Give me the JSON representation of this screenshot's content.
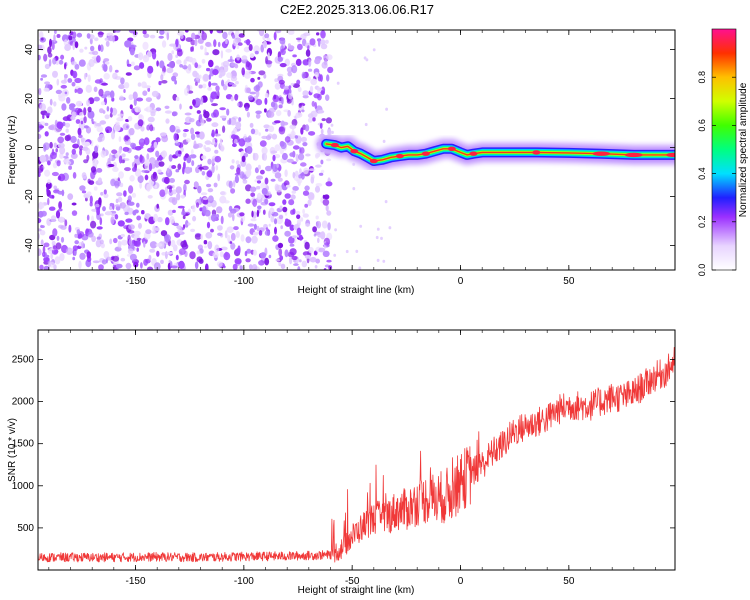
{
  "title": "C2E2.2025.313.06.06.R17",
  "chart_data": [
    {
      "type": "heatmap",
      "title": "C2E2.2025.313.06.06.R17",
      "xlabel": "Height of straight line (km)",
      "ylabel": "Frequency (Hz)",
      "xlim": [
        -195,
        99
      ],
      "ylim": [
        -50,
        48
      ],
      "xticks": [
        -150,
        -100,
        -50,
        0,
        50
      ],
      "xtick_labels": [
        "-150",
        "-100",
        "",
        "0",
        "50"
      ],
      "yticks": [
        -40,
        -20,
        0,
        20,
        40
      ],
      "ytick_labels": [
        "-40",
        "-20",
        "0",
        "20",
        "40"
      ],
      "noise_region_x": [
        -195,
        -60
      ],
      "signal_track": [
        {
          "x": -62,
          "y": 1.5
        },
        {
          "x": -58,
          "y": 1.0
        },
        {
          "x": -55,
          "y": 0.0
        },
        {
          "x": -52,
          "y": 0.5
        },
        {
          "x": -49,
          "y": -1.5
        },
        {
          "x": -46,
          "y": -2.5
        },
        {
          "x": -43,
          "y": -4.0
        },
        {
          "x": -40,
          "y": -5.5
        },
        {
          "x": -36,
          "y": -5.0
        },
        {
          "x": -32,
          "y": -4.0
        },
        {
          "x": -28,
          "y": -3.5
        },
        {
          "x": -24,
          "y": -3.0
        },
        {
          "x": -20,
          "y": -3.0
        },
        {
          "x": -16,
          "y": -2.5
        },
        {
          "x": -12,
          "y": -1.5
        },
        {
          "x": -8,
          "y": -0.5
        },
        {
          "x": -4,
          "y": -0.5
        },
        {
          "x": 0,
          "y": -2.0
        },
        {
          "x": 3,
          "y": -3.0
        },
        {
          "x": 6,
          "y": -2.5
        },
        {
          "x": 10,
          "y": -2.0
        },
        {
          "x": 20,
          "y": -2.0
        },
        {
          "x": 35,
          "y": -2.0
        },
        {
          "x": 50,
          "y": -2.2
        },
        {
          "x": 65,
          "y": -2.5
        },
        {
          "x": 80,
          "y": -3.0
        },
        {
          "x": 99,
          "y": -3.0
        }
      ],
      "colorbar": {
        "label": "Normalized spectral amplitude",
        "range": [
          0,
          1
        ],
        "ticks": [
          0.0,
          0.2,
          0.4,
          0.6,
          0.8
        ],
        "tick_labels": [
          "0.0",
          "0.2",
          "0.4",
          "0.6",
          "0.8"
        ],
        "colors": [
          "#ffffff",
          "#d9b6ff",
          "#9b30ff",
          "#2020ff",
          "#00e0ff",
          "#00ff60",
          "#a0ff00",
          "#ffd000",
          "#ff3000",
          "#ff1090"
        ]
      }
    },
    {
      "type": "line",
      "xlabel": "Height of straight line (km)",
      "ylabel": "SNR (10 * v/v)",
      "xlim": [
        -195,
        99
      ],
      "ylim": [
        0,
        2850
      ],
      "xticks": [
        -150,
        -100,
        -50,
        0,
        50
      ],
      "xtick_labels": [
        "-150",
        "-100",
        "-50",
        "0",
        "50"
      ],
      "yticks": [
        500,
        1000,
        1500,
        2000,
        2500
      ],
      "ytick_labels": [
        "500",
        "1000",
        "1500",
        "2000",
        "2500"
      ],
      "color": "#f03838",
      "series": [
        {
          "name": "SNR",
          "x": [
            -195,
            -180,
            -160,
            -140,
            -120,
            -100,
            -80,
            -60,
            -55,
            -50,
            -45,
            -40,
            -35,
            -30,
            -25,
            -20,
            -15,
            -10,
            -5,
            0,
            5,
            10,
            15,
            20,
            25,
            30,
            35,
            40,
            45,
            50,
            55,
            60,
            65,
            70,
            75,
            80,
            85,
            90,
            95,
            99
          ],
          "y": [
            150,
            150,
            150,
            155,
            150,
            160,
            165,
            180,
            250,
            400,
            520,
            620,
            620,
            700,
            720,
            800,
            850,
            850,
            900,
            1050,
            1150,
            1250,
            1400,
            1500,
            1650,
            1700,
            1750,
            1800,
            1900,
            1950,
            1950,
            1950,
            2000,
            2050,
            2050,
            2100,
            2200,
            2300,
            2350,
            2500
          ]
        }
      ]
    }
  ]
}
